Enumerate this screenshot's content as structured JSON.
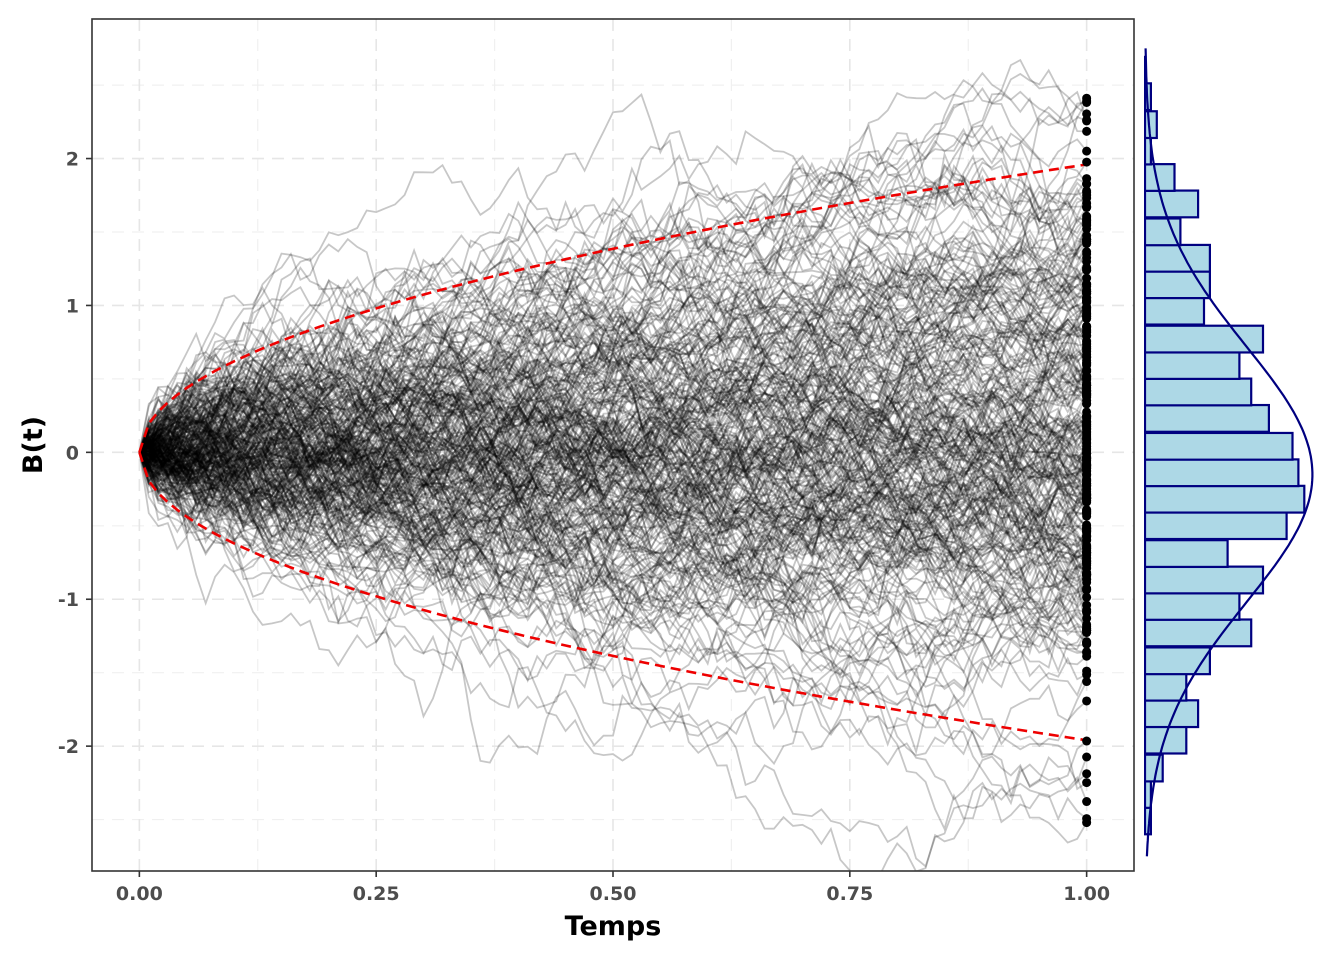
{
  "chart_data": [
    {
      "type": "line",
      "description_visible": "Brownian motion simulated paths",
      "xlabel": "Temps",
      "ylabel": "B(t)",
      "xlim": [
        -0.05,
        1.05
      ],
      "ylim": [
        -2.85,
        2.95
      ],
      "x_ticks": [
        0,
        0.25,
        0.5,
        0.75,
        1
      ],
      "x_tick_labels": [
        "0.00",
        "0.25",
        "0.50",
        "0.75",
        "1.00"
      ],
      "y_ticks": [
        -2,
        -1,
        0,
        1,
        2
      ],
      "y_tick_labels": [
        "-2",
        "-1",
        "0",
        "1",
        "2"
      ],
      "grid": "dashed",
      "paths": {
        "count": 300,
        "steps": 100,
        "color": "#000000",
        "opacity": 0.22
      },
      "envelope": {
        "formula": "±1.96·√t",
        "color": "#ee0000",
        "style": "dashed"
      },
      "end_points": {
        "x": 1,
        "color": "#000000"
      }
    },
    {
      "type": "bar",
      "orientation": "horizontal",
      "description_visible": "marginal histogram of B(1) with density curve",
      "bin_width": 0.182,
      "bins": [
        {
          "y0": -2.6,
          "count": 1
        },
        {
          "y0": -2.42,
          "count": 1
        },
        {
          "y0": -2.24,
          "count": 3
        },
        {
          "y0": -2.05,
          "count": 7
        },
        {
          "y0": -1.87,
          "count": 9
        },
        {
          "y0": -1.69,
          "count": 7
        },
        {
          "y0": -1.51,
          "count": 11
        },
        {
          "y0": -1.32,
          "count": 18
        },
        {
          "y0": -1.14,
          "count": 16
        },
        {
          "y0": -0.96,
          "count": 20
        },
        {
          "y0": -0.78,
          "count": 14
        },
        {
          "y0": -0.59,
          "count": 24
        },
        {
          "y0": -0.41,
          "count": 27
        },
        {
          "y0": -0.23,
          "count": 26
        },
        {
          "y0": -0.05,
          "count": 25
        },
        {
          "y0": 0.14,
          "count": 21
        },
        {
          "y0": 0.32,
          "count": 18
        },
        {
          "y0": 0.5,
          "count": 16
        },
        {
          "y0": 0.68,
          "count": 20
        },
        {
          "y0": 0.87,
          "count": 10
        },
        {
          "y0": 1.05,
          "count": 11
        },
        {
          "y0": 1.23,
          "count": 11
        },
        {
          "y0": 1.41,
          "count": 6
        },
        {
          "y0": 1.6,
          "count": 9
        },
        {
          "y0": 1.78,
          "count": 5
        },
        {
          "y0": 1.96,
          "count": 1
        },
        {
          "y0": 2.14,
          "count": 2
        },
        {
          "y0": 2.33,
          "count": 1
        },
        {
          "y0": 2.51,
          "count": 0
        }
      ],
      "density": {
        "mean": -0.15,
        "sd": 0.87,
        "color": "#000080"
      },
      "colors": {
        "fill": "#add8e6",
        "stroke": "#000080"
      }
    }
  ]
}
